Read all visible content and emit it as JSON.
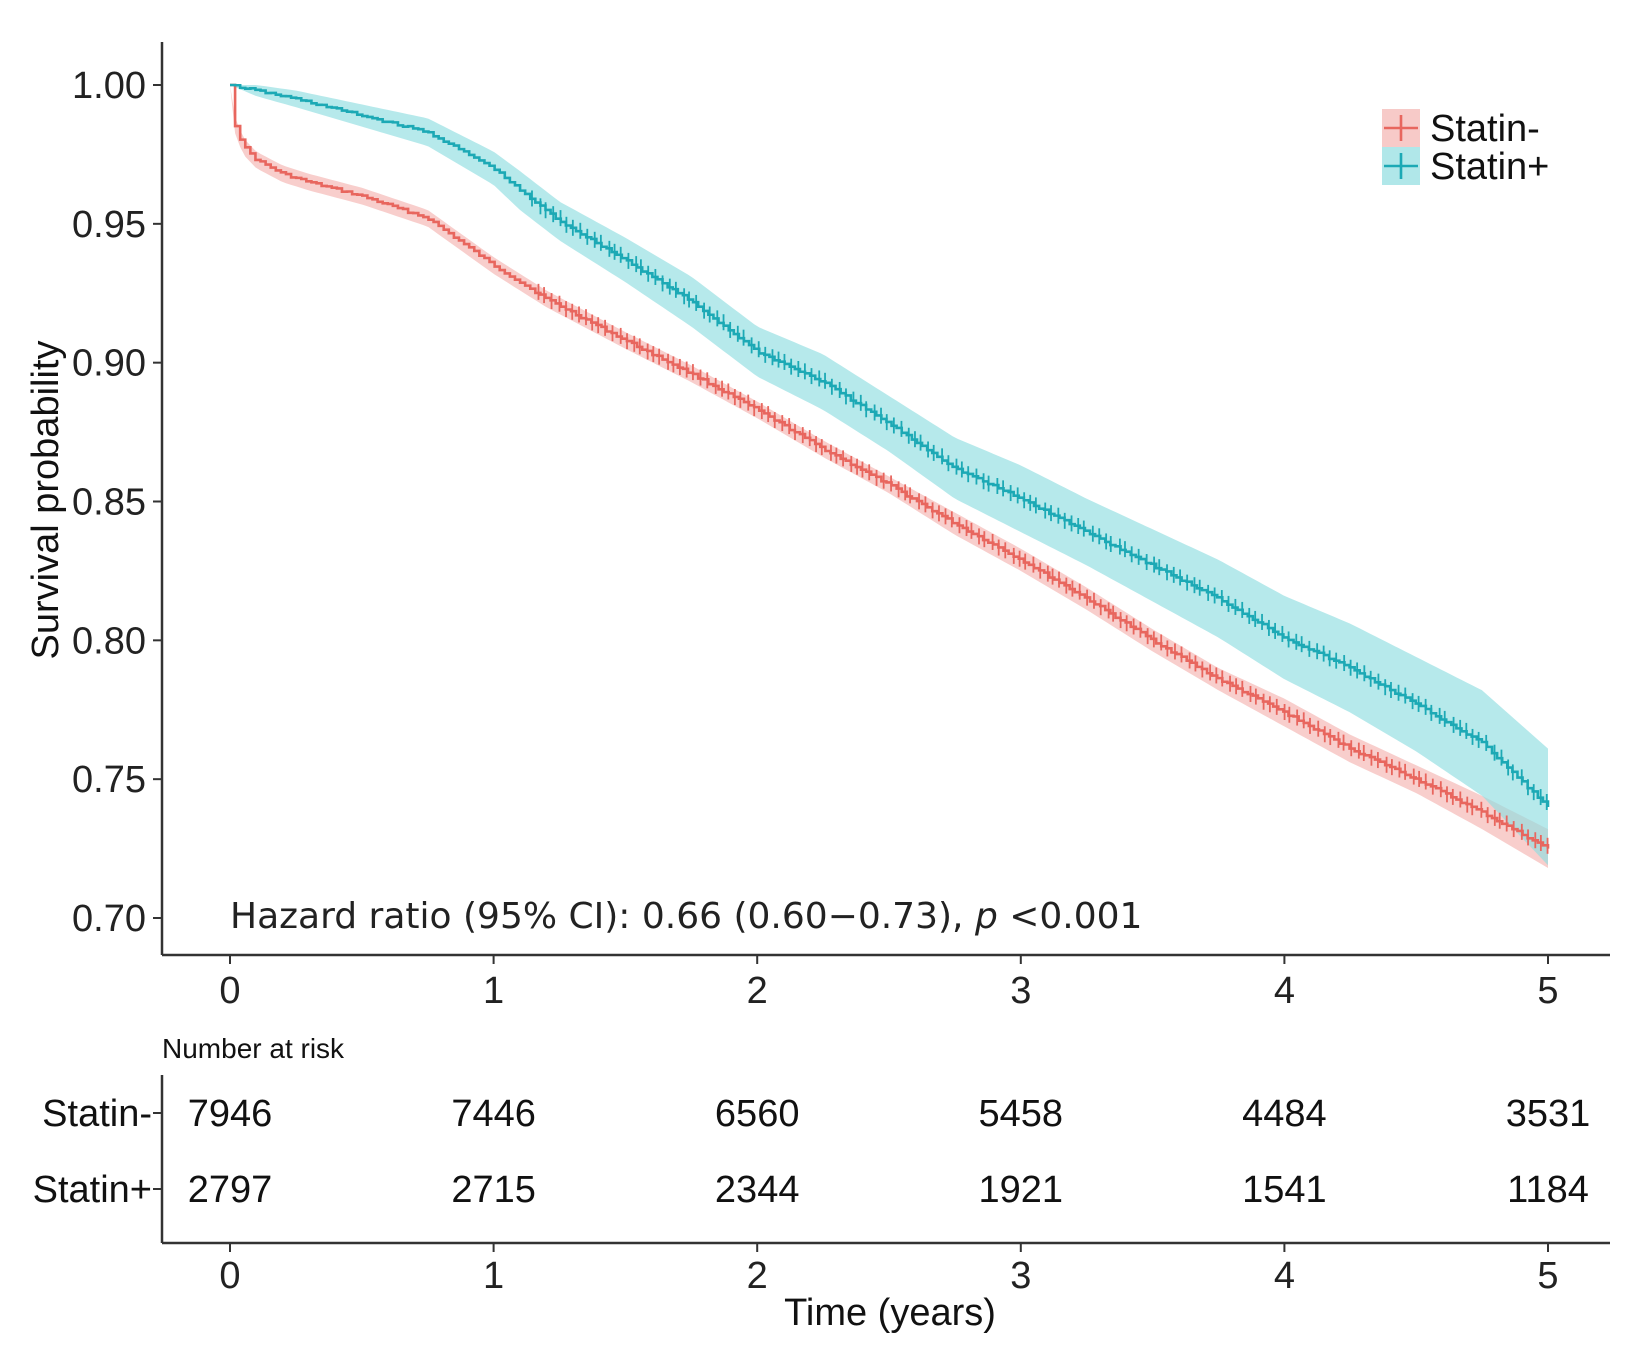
{
  "chart_data": {
    "type": "line",
    "subtype": "kaplan-meier survival curve",
    "ylabel": "Survival probability",
    "xlabel": "Time (years)",
    "xlim": [
      0,
      5
    ],
    "ylim": [
      0.7,
      1.0
    ],
    "x_ticks": [
      0,
      1,
      2,
      3,
      4,
      5
    ],
    "x_tick_labels": [
      "0",
      "1",
      "2",
      "3",
      "4",
      "5"
    ],
    "y_ticks": [
      0.7,
      0.75,
      0.8,
      0.85,
      0.9,
      0.95,
      1.0
    ],
    "y_tick_labels": [
      "0.70",
      "0.75",
      "0.80",
      "0.85",
      "0.90",
      "0.95",
      "1.00"
    ],
    "grid": false,
    "legend_position": "top-right",
    "annotation": {
      "prefix": "Hazard ratio (95% CI): 0.66 (0.60−0.73), ",
      "p_symbol": "p",
      "suffix": " <0.001"
    },
    "series": [
      {
        "name": "Statin-",
        "color": "#E8665E",
        "band_color": "#F4B3B0",
        "x": [
          0,
          0.02,
          0.05,
          0.1,
          0.2,
          0.3,
          0.5,
          0.75,
          1.0,
          1.2,
          1.5,
          1.75,
          2.0,
          2.25,
          2.5,
          2.75,
          3.0,
          3.25,
          3.5,
          3.75,
          4.0,
          4.25,
          4.5,
          4.75,
          5.0
        ],
        "values": [
          1.0,
          0.985,
          0.978,
          0.973,
          0.968,
          0.965,
          0.96,
          0.952,
          0.935,
          0.923,
          0.908,
          0.896,
          0.883,
          0.869,
          0.856,
          0.842,
          0.829,
          0.815,
          0.8,
          0.786,
          0.774,
          0.761,
          0.75,
          0.738,
          0.725
        ],
        "ci_lower": [
          1.0,
          0.982,
          0.975,
          0.97,
          0.965,
          0.962,
          0.957,
          0.949,
          0.932,
          0.92,
          0.905,
          0.893,
          0.88,
          0.866,
          0.853,
          0.838,
          0.825,
          0.811,
          0.796,
          0.782,
          0.769,
          0.756,
          0.745,
          0.732,
          0.718
        ],
        "ci_upper": [
          1.0,
          0.988,
          0.981,
          0.976,
          0.971,
          0.968,
          0.963,
          0.955,
          0.938,
          0.926,
          0.911,
          0.899,
          0.886,
          0.872,
          0.859,
          0.846,
          0.833,
          0.819,
          0.804,
          0.79,
          0.779,
          0.766,
          0.755,
          0.744,
          0.732
        ],
        "at_risk": [
          7946,
          7446,
          6560,
          5458,
          4484,
          3531
        ]
      },
      {
        "name": "Statin+",
        "color": "#1CA9B5",
        "band_color": "#8FDDE0",
        "x": [
          0,
          0.1,
          0.25,
          0.5,
          0.75,
          1.0,
          1.1,
          1.25,
          1.5,
          1.75,
          2.0,
          2.25,
          2.5,
          2.75,
          3.0,
          3.25,
          3.5,
          3.75,
          4.0,
          4.25,
          4.5,
          4.75,
          5.0
        ],
        "values": [
          1.0,
          0.998,
          0.995,
          0.989,
          0.983,
          0.97,
          0.962,
          0.951,
          0.937,
          0.922,
          0.904,
          0.893,
          0.878,
          0.862,
          0.851,
          0.839,
          0.827,
          0.815,
          0.801,
          0.79,
          0.777,
          0.763,
          0.74
        ],
        "ci_lower": [
          1.0,
          0.996,
          0.992,
          0.985,
          0.978,
          0.964,
          0.955,
          0.944,
          0.929,
          0.913,
          0.895,
          0.883,
          0.868,
          0.851,
          0.839,
          0.827,
          0.814,
          0.801,
          0.786,
          0.774,
          0.76,
          0.744,
          0.719
        ],
        "ci_upper": [
          1.0,
          1.0,
          0.998,
          0.993,
          0.988,
          0.976,
          0.969,
          0.958,
          0.945,
          0.931,
          0.913,
          0.903,
          0.888,
          0.873,
          0.863,
          0.851,
          0.84,
          0.829,
          0.816,
          0.806,
          0.794,
          0.782,
          0.761
        ],
        "at_risk": [
          2797,
          2715,
          2344,
          1921,
          1541,
          1184
        ]
      }
    ],
    "risk_table": {
      "title": "Number at risk",
      "rows": [
        {
          "label": "Statin-",
          "values": [
            "7946",
            "7446",
            "6560",
            "5458",
            "4484",
            "3531"
          ]
        },
        {
          "label": "Statin+",
          "values": [
            "2797",
            "2715",
            "2344",
            "1921",
            "1541",
            "1184"
          ]
        }
      ],
      "x_tick_labels": [
        "0",
        "1",
        "2",
        "3",
        "4",
        "5"
      ]
    }
  }
}
